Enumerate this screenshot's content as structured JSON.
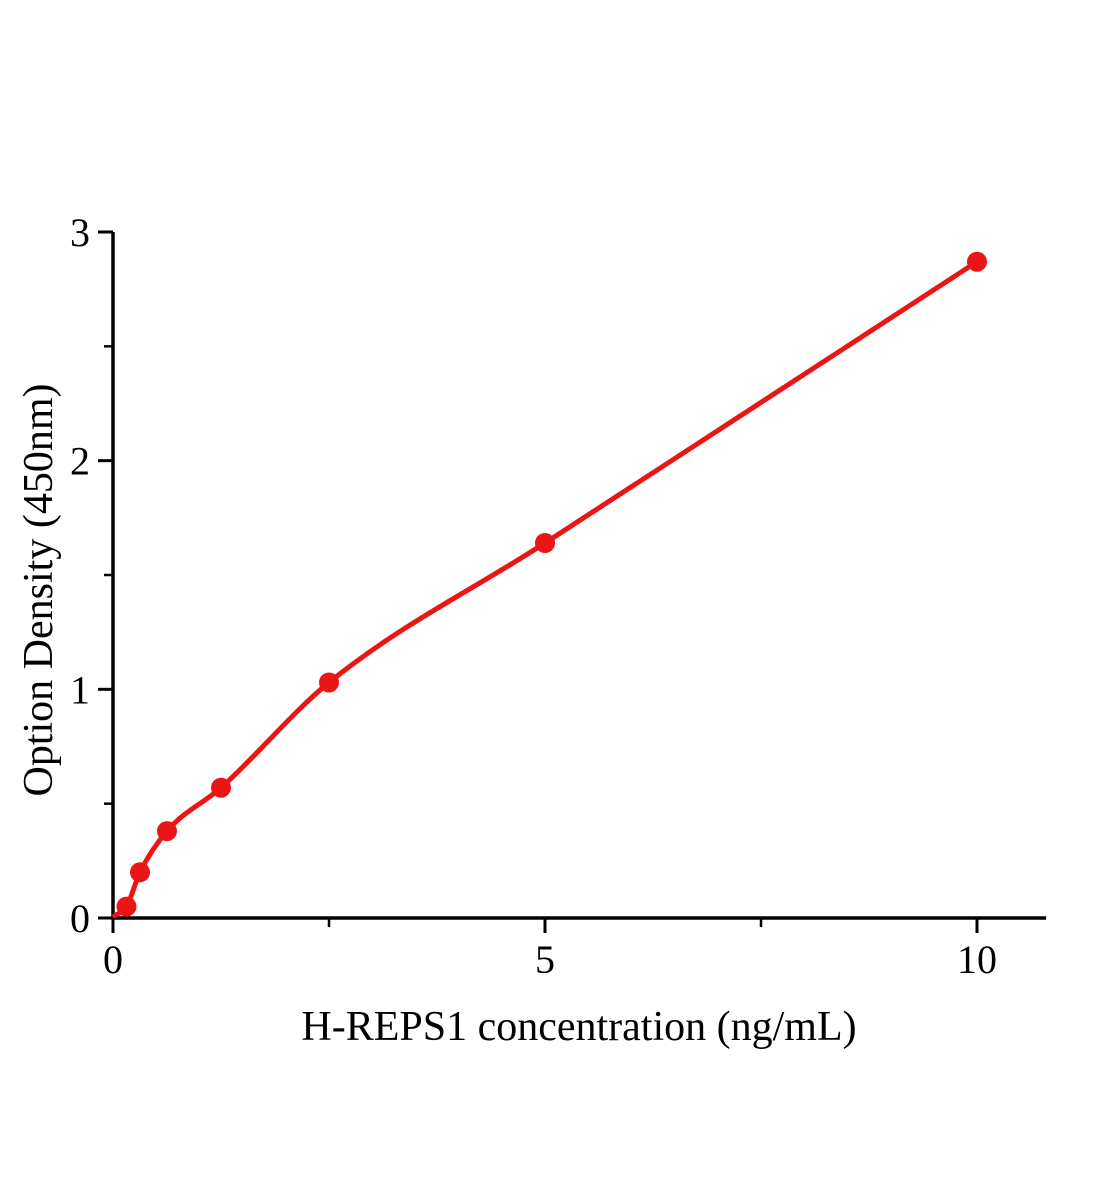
{
  "figure": {
    "background": "#ffffff",
    "axis_color": "#000000"
  },
  "chart_data": {
    "type": "scatter",
    "subtype": "standard-curve-with-fitted-line",
    "title": "",
    "xlabel": "H-REPS1 concentration (ng/mL)",
    "ylabel": "Option Density (450nm)",
    "xlim": [
      0,
      10.8
    ],
    "ylim": [
      0,
      3
    ],
    "x_major_ticks": [
      0,
      5,
      10
    ],
    "x_major_tick_labels": [
      "0",
      "5",
      "10"
    ],
    "x_minor_ticks": [
      2.5,
      7.5
    ],
    "y_major_ticks": [
      0,
      1,
      2,
      3
    ],
    "y_major_tick_labels": [
      "0",
      "1",
      "2",
      "3"
    ],
    "y_minor_ticks": [
      0.5,
      1.5,
      2.5
    ],
    "grid": false,
    "legend_position": "none",
    "series": [
      {
        "name": "H-REPS1 standard curve",
        "color": "#ec1515",
        "marker": "filled-circle",
        "marker_radius_px": 10,
        "x": [
          0.156,
          0.312,
          0.625,
          1.25,
          2.5,
          5,
          10
        ],
        "y": [
          0.05,
          0.2,
          0.38,
          0.57,
          1.03,
          1.64,
          2.87
        ],
        "curve_start": [
          0.02,
          0.01
        ]
      }
    ]
  }
}
